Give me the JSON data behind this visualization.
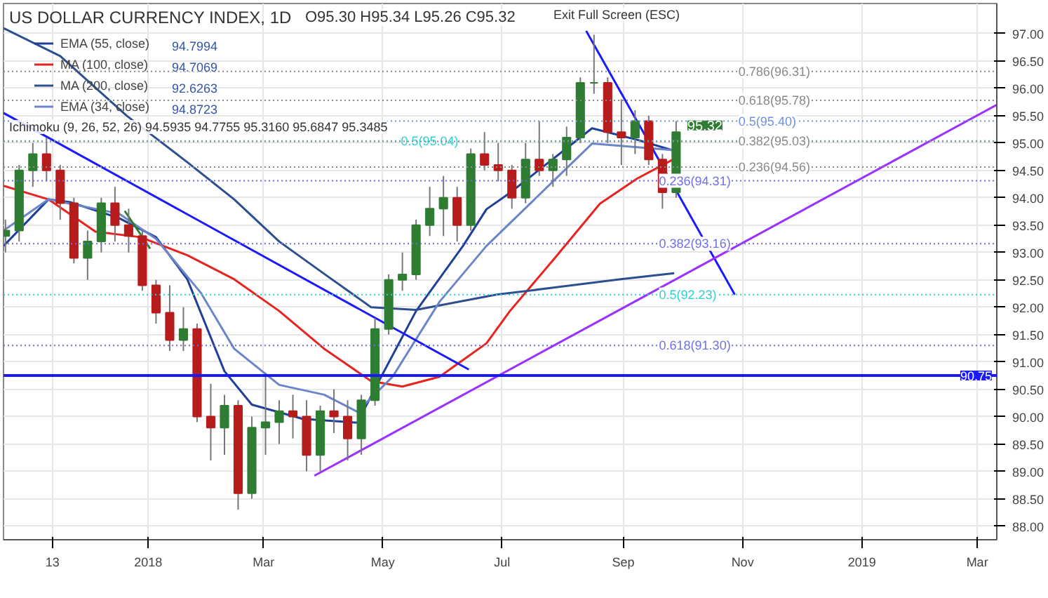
{
  "chart_data": {
    "type": "candlestick",
    "title": "US DOLLAR CURRENCY INDEX, 1D",
    "x": [
      "2017-10-20",
      "2017-10-27",
      "2017-11-03",
      "2017-11-10",
      "2017-11-17",
      "2017-11-24",
      "2017-12-01",
      "2017-12-08",
      "2017-12-15",
      "2017-12-22",
      "2017-12-29",
      "2018-01-05",
      "2018-01-12",
      "2018-01-19",
      "2018-01-26",
      "2018-02-02",
      "2018-02-09",
      "2018-02-16",
      "2018-02-23",
      "2018-03-02",
      "2018-03-09",
      "2018-03-16",
      "2018-03-23",
      "2018-03-30",
      "2018-04-06",
      "2018-04-13",
      "2018-04-20",
      "2018-04-27",
      "2018-05-04",
      "2018-05-11",
      "2018-05-18",
      "2018-05-25",
      "2018-06-01",
      "2018-06-08",
      "2018-06-15",
      "2018-06-22",
      "2018-06-29",
      "2018-07-06",
      "2018-07-13",
      "2018-07-20",
      "2018-07-27",
      "2018-08-03",
      "2018-08-10",
      "2018-08-17",
      "2018-08-24",
      "2018-08-31",
      "2018-09-07",
      "2018-09-14",
      "2018-09-21",
      "2018-09-28"
    ],
    "ohlc": [
      [
        93.3,
        93.6,
        93.0,
        93.4
      ],
      [
        93.4,
        94.6,
        93.2,
        94.5
      ],
      [
        94.5,
        95.0,
        94.2,
        94.8
      ],
      [
        94.8,
        95.1,
        94.3,
        94.5
      ],
      [
        94.5,
        94.6,
        93.6,
        93.9
      ],
      [
        93.9,
        94.0,
        92.8,
        92.9
      ],
      [
        92.9,
        93.4,
        92.5,
        93.2
      ],
      [
        93.2,
        94.0,
        93.0,
        93.9
      ],
      [
        93.9,
        94.2,
        93.2,
        93.5
      ],
      [
        93.5,
        93.8,
        93.0,
        93.3
      ],
      [
        93.3,
        93.4,
        92.3,
        92.4
      ],
      [
        92.4,
        92.5,
        91.7,
        91.9
      ],
      [
        91.9,
        92.4,
        91.2,
        91.4
      ],
      [
        91.4,
        92.0,
        91.2,
        91.6
      ],
      [
        91.6,
        91.7,
        89.9,
        90.0
      ],
      [
        90.0,
        90.6,
        89.2,
        89.8
      ],
      [
        89.8,
        90.4,
        89.3,
        90.2
      ],
      [
        90.2,
        90.3,
        88.3,
        88.6
      ],
      [
        88.6,
        90.0,
        88.5,
        89.8
      ],
      [
        89.8,
        90.8,
        89.3,
        89.9
      ],
      [
        89.9,
        90.3,
        89.5,
        90.1
      ],
      [
        90.1,
        90.4,
        89.6,
        90.0
      ],
      [
        90.0,
        90.3,
        89.0,
        89.3
      ],
      [
        89.3,
        90.2,
        89.0,
        90.1
      ],
      [
        90.1,
        90.5,
        89.7,
        90.0
      ],
      [
        90.0,
        90.3,
        89.2,
        89.6
      ],
      [
        89.6,
        90.4,
        89.3,
        90.3
      ],
      [
        90.3,
        91.8,
        90.2,
        91.6
      ],
      [
        91.6,
        92.6,
        91.5,
        92.5
      ],
      [
        92.5,
        93.0,
        92.3,
        92.6
      ],
      [
        92.6,
        93.6,
        92.5,
        93.5
      ],
      [
        93.5,
        94.2,
        93.3,
        93.8
      ],
      [
        93.8,
        94.4,
        93.3,
        94.0
      ],
      [
        94.0,
        94.2,
        93.2,
        93.5
      ],
      [
        93.5,
        94.9,
        93.4,
        94.8
      ],
      [
        94.8,
        95.2,
        94.5,
        94.6
      ],
      [
        94.6,
        95.0,
        94.3,
        94.5
      ],
      [
        94.5,
        94.6,
        93.8,
        94.0
      ],
      [
        94.0,
        95.0,
        93.9,
        94.7
      ],
      [
        94.7,
        95.4,
        94.4,
        94.5
      ],
      [
        94.5,
        94.8,
        94.2,
        94.7
      ],
      [
        94.7,
        95.3,
        94.4,
        95.1
      ],
      [
        95.1,
        96.2,
        95.0,
        96.1
      ],
      [
        96.1,
        96.98,
        95.9,
        96.1
      ],
      [
        96.1,
        96.2,
        95.0,
        95.2
      ],
      [
        95.2,
        95.8,
        94.6,
        95.1
      ],
      [
        95.1,
        95.6,
        94.8,
        95.4
      ],
      [
        95.4,
        95.5,
        94.6,
        94.7
      ],
      [
        94.7,
        94.8,
        93.8,
        94.1
      ],
      [
        94.1,
        95.4,
        94.0,
        95.2
      ]
    ],
    "series": [
      {
        "name": "EMA (55, close)",
        "type": "line",
        "color": "#1f3f99",
        "x": [
          "2017-10-19",
          "2017-11-11",
          "2017-11-22",
          "2017-12-17",
          "2018-01-05",
          "2018-01-21",
          "2018-02-09",
          "2018-02-23",
          "2018-03-21",
          "2018-04-18",
          "2018-04-29",
          "2018-05-18",
          "2018-06-11",
          "2018-06-23",
          "2018-07-05",
          "2018-08-16",
          "2018-09-08",
          "2018-09-27"
        ],
        "values": [
          93.12,
          93.97,
          93.92,
          93.63,
          93.28,
          92.51,
          90.83,
          90.22,
          89.96,
          89.89,
          90.65,
          91.93,
          93.12,
          93.79,
          94.09,
          95.27,
          95.06,
          94.86
        ]
      },
      {
        "name": "MA (100, close)",
        "type": "line",
        "color": "#e8231f",
        "x": [
          "2017-10-19",
          "2017-11-11",
          "2017-12-05",
          "2017-12-28",
          "2018-01-21",
          "2018-02-14",
          "2018-03-09",
          "2018-04-01",
          "2018-04-25",
          "2018-05-11",
          "2018-05-30",
          "2018-06-23",
          "2018-07-05",
          "2018-07-28",
          "2018-08-20",
          "2018-09-08",
          "2018-09-27"
        ],
        "values": [
          94.22,
          93.97,
          93.38,
          93.28,
          92.95,
          92.51,
          91.93,
          91.24,
          90.65,
          90.55,
          90.73,
          91.34,
          91.93,
          92.9,
          93.89,
          94.35,
          94.71
        ]
      },
      {
        "name": "MA (200, close)",
        "type": "line",
        "color": "#2c4f8f",
        "x": [
          "2017-10-19",
          "2017-11-17",
          "2017-12-21",
          "2018-01-21",
          "2018-02-14",
          "2018-03-09",
          "2018-04-01",
          "2018-04-25",
          "2018-05-18",
          "2018-06-28",
          "2018-07-28",
          "2018-08-30",
          "2018-09-27"
        ],
        "values": [
          97.1,
          96.59,
          95.5,
          94.65,
          93.97,
          93.2,
          92.61,
          92.0,
          91.95,
          92.23,
          92.36,
          92.51,
          92.62
        ]
      },
      {
        "name": "EMA (34, close)",
        "type": "line",
        "color": "#6a86c8",
        "x": [
          "2017-10-19",
          "2017-11-11",
          "2017-12-17",
          "2018-01-05",
          "2018-01-28",
          "2018-02-14",
          "2018-03-09",
          "2018-04-01",
          "2018-04-18",
          "2018-05-06",
          "2018-05-30",
          "2018-06-23",
          "2018-08-16",
          "2018-09-27"
        ],
        "values": [
          93.4,
          93.97,
          93.71,
          93.25,
          92.26,
          91.24,
          90.58,
          90.4,
          90.09,
          90.73,
          92.1,
          93.12,
          94.99,
          94.87
        ]
      },
      {
        "type": "line",
        "color": "#1a1aff",
        "x": [
          "2017-10-19",
          "2018-06-14"
        ],
        "values": [
          95.55,
          90.86
        ]
      },
      {
        "type": "line",
        "color": "#1a1aff",
        "x": [
          "2018-08-13",
          "2018-10-28"
        ],
        "values": [
          97.05,
          92.23
        ]
      },
      {
        "type": "line",
        "color": "#2e7d32",
        "x": [
          "2017-12-20",
          "2018-01-02"
        ],
        "values": [
          93.76,
          93.07
        ]
      },
      {
        "type": "line",
        "color": "#9b30ff",
        "x": [
          "2018-03-27",
          "2019-03-11"
        ],
        "values": [
          88.92,
          95.7
        ]
      }
    ],
    "xlim": [
      "2017-10-19",
      "2019-03-11"
    ],
    "xticks": [
      {
        "value": "2017-11-13",
        "label": "13"
      },
      {
        "value": "2018-01-01",
        "label": "2018"
      },
      {
        "value": "2018-03-01",
        "label": "Mar"
      },
      {
        "value": "2018-05-01",
        "label": "May"
      },
      {
        "value": "2018-07-01",
        "label": "Jul"
      },
      {
        "value": "2018-09-01",
        "label": "Sep"
      },
      {
        "value": "2018-11-01",
        "label": "Nov"
      },
      {
        "value": "2019-01-01",
        "label": "2019"
      },
      {
        "value": "2019-03-01",
        "label": "Mar"
      }
    ],
    "ylim": [
      87.75,
      97.55
    ],
    "yticks": [
      {
        "value": 88,
        "label": "88.00"
      },
      {
        "value": 88.5,
        "label": "88.50"
      },
      {
        "value": 89,
        "label": "89.00"
      },
      {
        "value": 89.5,
        "label": "89.50"
      },
      {
        "value": 90,
        "label": "90.00"
      },
      {
        "value": 90.5,
        "label": "90.50"
      },
      {
        "value": 91,
        "label": "91.00"
      },
      {
        "value": 91.5,
        "label": "91.50"
      },
      {
        "value": 92,
        "label": "92.00"
      },
      {
        "value": 92.5,
        "label": "92.50"
      },
      {
        "value": 93,
        "label": "93.00"
      },
      {
        "value": 93.5,
        "label": "93.50"
      },
      {
        "value": 94,
        "label": "94.00"
      },
      {
        "value": 94.5,
        "label": "94.50"
      },
      {
        "value": 95,
        "label": "95.00"
      },
      {
        "value": 95.5,
        "label": "95.50"
      },
      {
        "value": 96,
        "label": "96.00"
      },
      {
        "value": 96.5,
        "label": "96.50"
      },
      {
        "value": 97,
        "label": "97.00"
      }
    ],
    "ref_lines": [
      {
        "axis": "y",
        "value": 95.04,
        "label": "0.5(95.04)",
        "color": "#2fd0d0",
        "line_style": "dotted"
      },
      {
        "axis": "y",
        "value": 96.31,
        "label": "0.786(96.31)",
        "color": "#888888",
        "line_style": "dotted"
      },
      {
        "axis": "y",
        "value": 95.78,
        "label": "0.618(95.78)",
        "color": "#888888",
        "line_style": "dotted"
      },
      {
        "axis": "y",
        "value": 95.4,
        "label": "0.5(95.40)",
        "color": "#6f8fe8",
        "line_style": "dotted"
      },
      {
        "axis": "y",
        "value": 95.03,
        "label": "0.382(95.03)",
        "color": "#888888",
        "line_style": "dotted"
      },
      {
        "axis": "y",
        "value": 94.56,
        "label": "0.236(94.56)",
        "color": "#888888",
        "line_style": "dotted"
      },
      {
        "axis": "y",
        "value": 94.31,
        "label": "0.236(94.31)",
        "color": "#6f6fe8",
        "line_style": "dotted"
      },
      {
        "axis": "y",
        "value": 93.16,
        "label": "0.382(93.16)",
        "color": "#6f6fe8",
        "line_style": "dotted"
      },
      {
        "axis": "y",
        "value": 92.23,
        "label": "0.5(92.23)",
        "color": "#2fd0d0",
        "line_style": "dotted"
      },
      {
        "axis": "y",
        "value": 91.3,
        "label": "0.618(91.30)",
        "color": "#6f6fe8",
        "line_style": "dotted"
      },
      {
        "axis": "y",
        "value": 90.75,
        "label": "90.75",
        "color": "#1a1aff",
        "line_style": "solid"
      }
    ],
    "annotations": [
      "O95.30 H95.34 L95.26 C95.32",
      "Ichimoku (9, 26, 52, 26) 94.5935 94.7755 95.3160 95.6847 95.3485",
      "94.7994",
      "94.7069",
      "92.6263",
      "94.8723",
      "Exit Full Screen (ESC)",
      {
        "text": "95.32",
        "x": "2018-09-28",
        "y": 95.32
      }
    ],
    "grid": true,
    "legend": "top left"
  }
}
